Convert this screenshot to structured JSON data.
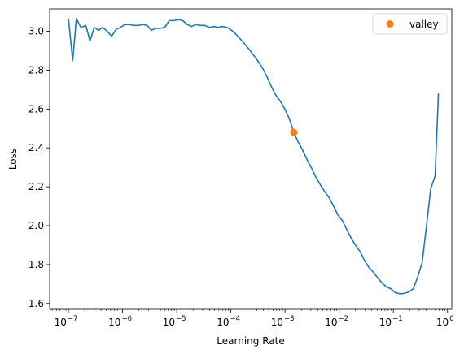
{
  "chart_data": {
    "type": "line",
    "xlabel": "Learning Rate",
    "ylabel": "Loss",
    "xscale": "log",
    "xlim": [
      4.5e-08,
      1.2
    ],
    "ylim": [
      1.57,
      3.115
    ],
    "grid": false,
    "legend": {
      "placement": "top-right",
      "entries": [
        "valley"
      ]
    },
    "x_ticks": [
      {
        "value": 1e-07,
        "base": "10",
        "exp": "−7"
      },
      {
        "value": 1e-06,
        "base": "10",
        "exp": "−6"
      },
      {
        "value": 1e-05,
        "base": "10",
        "exp": "−5"
      },
      {
        "value": 0.0001,
        "base": "10",
        "exp": "−4"
      },
      {
        "value": 0.001,
        "base": "10",
        "exp": "−3"
      },
      {
        "value": 0.01,
        "base": "10",
        "exp": "−2"
      },
      {
        "value": 0.1,
        "base": "10",
        "exp": "−1"
      },
      {
        "value": 1,
        "base": "10",
        "exp": "0"
      }
    ],
    "y_ticks": [
      {
        "value": 1.6,
        "label": "1.6"
      },
      {
        "value": 1.8,
        "label": "1.8"
      },
      {
        "value": 2.0,
        "label": "2.0"
      },
      {
        "value": 2.2,
        "label": "2.2"
      },
      {
        "value": 2.4,
        "label": "2.4"
      },
      {
        "value": 2.6,
        "label": "2.6"
      },
      {
        "value": 2.8,
        "label": "2.8"
      },
      {
        "value": 3.0,
        "label": "3.0"
      }
    ],
    "colors": {
      "loss_line": "#1f77b4",
      "valley_marker": "#ff7f0e"
    },
    "series": [
      {
        "color": "#1f77b4",
        "points": [
          [
            1e-07,
            3.065
          ],
          [
            1.2e-07,
            2.85
          ],
          [
            1.4e-07,
            3.065
          ],
          [
            1.7e-07,
            3.02
          ],
          [
            2.1e-07,
            3.03
          ],
          [
            2.5e-07,
            2.95
          ],
          [
            3e-07,
            3.02
          ],
          [
            3.6e-07,
            3.005
          ],
          [
            4.3e-07,
            3.02
          ],
          [
            5.2e-07,
            3.0
          ],
          [
            6.3e-07,
            2.975
          ],
          [
            7.6e-07,
            3.01
          ],
          [
            9.2e-07,
            3.02
          ],
          [
            1.1e-06,
            3.035
          ],
          [
            1.34e-06,
            3.035
          ],
          [
            1.62e-06,
            3.03
          ],
          [
            1.95e-06,
            3.03
          ],
          [
            2.35e-06,
            3.035
          ],
          [
            2.85e-06,
            3.03
          ],
          [
            3.4e-06,
            3.005
          ],
          [
            4.1e-06,
            3.015
          ],
          [
            5e-06,
            3.015
          ],
          [
            6e-06,
            3.02
          ],
          [
            7.3e-06,
            3.055
          ],
          [
            8.8e-06,
            3.055
          ],
          [
            1.07e-05,
            3.06
          ],
          [
            1.29e-05,
            3.055
          ],
          [
            1.56e-05,
            3.035
          ],
          [
            1.88e-05,
            3.025
          ],
          [
            2.27e-05,
            3.035
          ],
          [
            2.74e-05,
            3.03
          ],
          [
            3.3e-05,
            3.03
          ],
          [
            4e-05,
            3.02
          ],
          [
            4.8e-05,
            3.025
          ],
          [
            5.8e-05,
            3.02
          ],
          [
            7e-05,
            3.025
          ],
          [
            8.5e-05,
            3.02
          ],
          [
            0.000103,
            3.005
          ],
          [
            0.000124,
            2.985
          ],
          [
            0.00015,
            2.96
          ],
          [
            0.00018,
            2.935
          ],
          [
            0.00022,
            2.905
          ],
          [
            0.000265,
            2.875
          ],
          [
            0.00032,
            2.845
          ],
          [
            0.000385,
            2.81
          ],
          [
            0.000465,
            2.765
          ],
          [
            0.00056,
            2.715
          ],
          [
            0.00068,
            2.67
          ],
          [
            0.00082,
            2.64
          ],
          [
            0.00099,
            2.6
          ],
          [
            0.0012,
            2.55
          ],
          [
            0.00145,
            2.48
          ],
          [
            0.00175,
            2.43
          ],
          [
            0.0021,
            2.39
          ],
          [
            0.00255,
            2.34
          ],
          [
            0.0031,
            2.295
          ],
          [
            0.0037,
            2.25
          ],
          [
            0.0045,
            2.21
          ],
          [
            0.0054,
            2.175
          ],
          [
            0.0065,
            2.145
          ],
          [
            0.0079,
            2.1
          ],
          [
            0.0095,
            2.055
          ],
          [
            0.0115,
            2.025
          ],
          [
            0.0138,
            1.98
          ],
          [
            0.0167,
            1.935
          ],
          [
            0.02,
            1.9
          ],
          [
            0.0245,
            1.865
          ],
          [
            0.0295,
            1.82
          ],
          [
            0.0355,
            1.785
          ],
          [
            0.043,
            1.76
          ],
          [
            0.052,
            1.73
          ],
          [
            0.062,
            1.705
          ],
          [
            0.075,
            1.685
          ],
          [
            0.091,
            1.675
          ],
          [
            0.109,
            1.655
          ],
          [
            0.132,
            1.65
          ],
          [
            0.16,
            1.652
          ],
          [
            0.193,
            1.66
          ],
          [
            0.233,
            1.675
          ],
          [
            0.28,
            1.735
          ],
          [
            0.34,
            1.81
          ],
          [
            0.41,
            2.0
          ],
          [
            0.49,
            2.19
          ],
          [
            0.59,
            2.255
          ],
          [
            0.68,
            2.68
          ]
        ]
      }
    ],
    "valley": {
      "name": "valley",
      "x": 0.00145,
      "y": 2.48,
      "color": "#ff7f0e"
    }
  }
}
